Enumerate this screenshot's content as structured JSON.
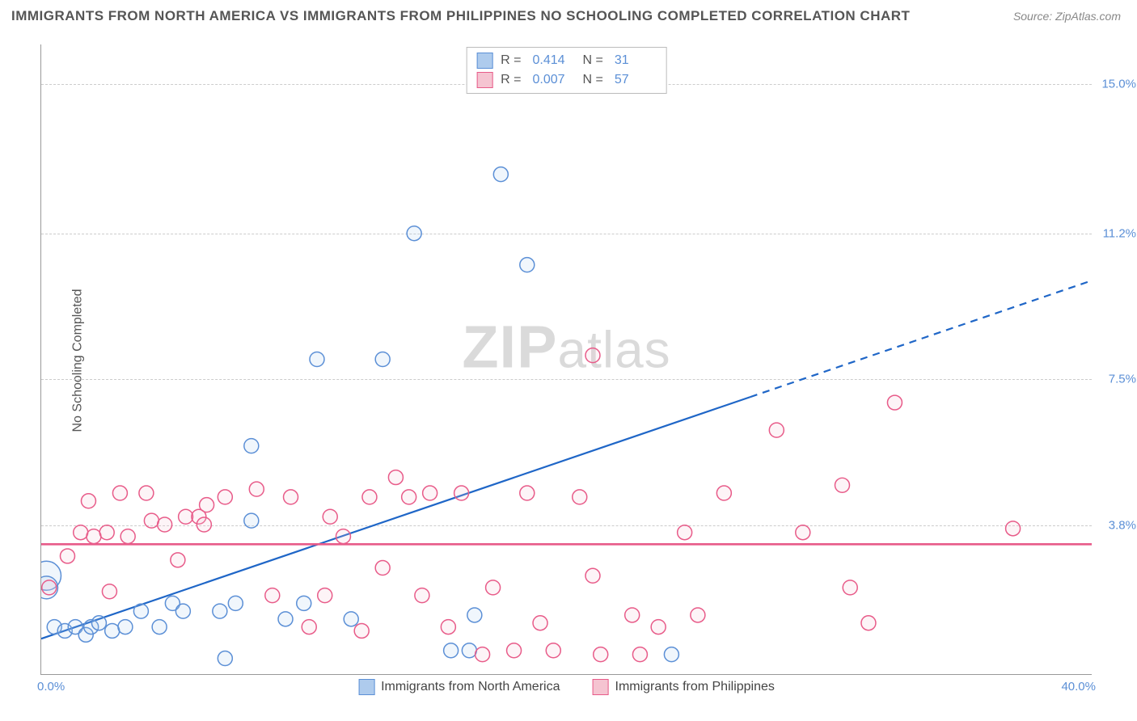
{
  "title": "IMMIGRANTS FROM NORTH AMERICA VS IMMIGRANTS FROM PHILIPPINES NO SCHOOLING COMPLETED CORRELATION CHART",
  "source": "Source: ZipAtlas.com",
  "ylabel": "No Schooling Completed",
  "watermark_bold": "ZIP",
  "watermark_light": "atlas",
  "chart": {
    "type": "scatter-correlation",
    "background_color": "#ffffff",
    "grid_color": "#cccccc",
    "axis_color": "#999999",
    "tick_color": "#5b8fd6",
    "xlim": [
      0.0,
      40.0
    ],
    "ylim": [
      0.0,
      16.0
    ],
    "x_tick_labels": {
      "min": "0.0%",
      "max": "40.0%"
    },
    "y_ticks": [
      {
        "value": 3.8,
        "label": "3.8%"
      },
      {
        "value": 7.5,
        "label": "7.5%"
      },
      {
        "value": 11.2,
        "label": "11.2%"
      },
      {
        "value": 15.0,
        "label": "15.0%"
      }
    ],
    "stats_box": {
      "rows": [
        {
          "swatch_fill": "#aecbed",
          "swatch_stroke": "#5b8fd6",
          "r_label": "R =",
          "r_value": "0.414",
          "n_label": "N =",
          "n_value": "31"
        },
        {
          "swatch_fill": "#f5c4d1",
          "swatch_stroke": "#e85b89",
          "r_label": "R =",
          "r_value": "0.007",
          "n_label": "N =",
          "n_value": "57"
        }
      ]
    },
    "bottom_legend": [
      {
        "swatch_fill": "#aecbed",
        "swatch_stroke": "#5b8fd6",
        "label": "Immigrants from North America"
      },
      {
        "swatch_fill": "#f5c4d1",
        "swatch_stroke": "#e85b89",
        "label": "Immigrants from Philippines"
      }
    ],
    "series": [
      {
        "name": "north_america",
        "marker": "circle",
        "marker_radius": 9,
        "fill": "#aecbed",
        "stroke": "#5b8fd6",
        "trend": {
          "solid_to_x": 27.0,
          "colour": "#1f66c7",
          "width": 2.2,
          "y_at_0": 0.9,
          "y_at_40": 10.0
        },
        "points": [
          {
            "x": 0.2,
            "y": 2.5,
            "r": 18
          },
          {
            "x": 0.2,
            "y": 2.2,
            "r": 14
          },
          {
            "x": 0.5,
            "y": 1.2
          },
          {
            "x": 0.9,
            "y": 1.1
          },
          {
            "x": 1.3,
            "y": 1.2
          },
          {
            "x": 1.7,
            "y": 1.0
          },
          {
            "x": 1.9,
            "y": 1.2
          },
          {
            "x": 2.2,
            "y": 1.3
          },
          {
            "x": 2.7,
            "y": 1.1
          },
          {
            "x": 3.2,
            "y": 1.2
          },
          {
            "x": 3.8,
            "y": 1.6
          },
          {
            "x": 4.5,
            "y": 1.2
          },
          {
            "x": 5.0,
            "y": 1.8
          },
          {
            "x": 5.4,
            "y": 1.6
          },
          {
            "x": 6.8,
            "y": 1.6
          },
          {
            "x": 7.0,
            "y": 0.4
          },
          {
            "x": 7.4,
            "y": 1.8
          },
          {
            "x": 8.0,
            "y": 3.9
          },
          {
            "x": 8.0,
            "y": 5.8
          },
          {
            "x": 9.3,
            "y": 1.4
          },
          {
            "x": 10.0,
            "y": 1.8
          },
          {
            "x": 10.5,
            "y": 8.0
          },
          {
            "x": 11.8,
            "y": 1.4
          },
          {
            "x": 13.0,
            "y": 8.0
          },
          {
            "x": 14.2,
            "y": 11.2
          },
          {
            "x": 15.6,
            "y": 0.6
          },
          {
            "x": 16.3,
            "y": 0.6
          },
          {
            "x": 16.5,
            "y": 1.5
          },
          {
            "x": 17.5,
            "y": 12.7
          },
          {
            "x": 18.5,
            "y": 10.4
          },
          {
            "x": 24.0,
            "y": 0.5
          }
        ]
      },
      {
        "name": "philippines",
        "marker": "circle",
        "marker_radius": 9,
        "fill": "#f5c4d1",
        "stroke": "#e85b89",
        "trend": {
          "solid_to_x": 40.0,
          "colour": "#e85b89",
          "width": 2.6,
          "y_at_0": 3.3,
          "y_at_40": 3.3
        },
        "points": [
          {
            "x": 0.3,
            "y": 2.2
          },
          {
            "x": 1.0,
            "y": 3.0
          },
          {
            "x": 1.5,
            "y": 3.6
          },
          {
            "x": 1.8,
            "y": 4.4
          },
          {
            "x": 2.0,
            "y": 3.5
          },
          {
            "x": 2.5,
            "y": 3.6
          },
          {
            "x": 2.6,
            "y": 2.1
          },
          {
            "x": 3.0,
            "y": 4.6
          },
          {
            "x": 3.3,
            "y": 3.5
          },
          {
            "x": 4.0,
            "y": 4.6
          },
          {
            "x": 4.2,
            "y": 3.9
          },
          {
            "x": 4.7,
            "y": 3.8
          },
          {
            "x": 5.2,
            "y": 2.9
          },
          {
            "x": 5.5,
            "y": 4.0
          },
          {
            "x": 6.0,
            "y": 4.0
          },
          {
            "x": 6.2,
            "y": 3.8
          },
          {
            "x": 6.3,
            "y": 4.3
          },
          {
            "x": 7.0,
            "y": 4.5
          },
          {
            "x": 8.2,
            "y": 4.7
          },
          {
            "x": 8.8,
            "y": 2.0
          },
          {
            "x": 9.5,
            "y": 4.5
          },
          {
            "x": 10.2,
            "y": 1.2
          },
          {
            "x": 10.8,
            "y": 2.0
          },
          {
            "x": 11.0,
            "y": 4.0
          },
          {
            "x": 11.5,
            "y": 3.5
          },
          {
            "x": 12.2,
            "y": 1.1
          },
          {
            "x": 12.5,
            "y": 4.5
          },
          {
            "x": 13.0,
            "y": 2.7
          },
          {
            "x": 13.5,
            "y": 5.0
          },
          {
            "x": 14.0,
            "y": 4.5
          },
          {
            "x": 14.5,
            "y": 2.0
          },
          {
            "x": 14.8,
            "y": 4.6
          },
          {
            "x": 15.5,
            "y": 1.2
          },
          {
            "x": 16.0,
            "y": 4.6
          },
          {
            "x": 16.8,
            "y": 0.5
          },
          {
            "x": 17.2,
            "y": 2.2
          },
          {
            "x": 18.0,
            "y": 0.6
          },
          {
            "x": 18.5,
            "y": 4.6
          },
          {
            "x": 19.0,
            "y": 1.3
          },
          {
            "x": 19.5,
            "y": 0.6
          },
          {
            "x": 20.5,
            "y": 4.5
          },
          {
            "x": 21.0,
            "y": 2.5
          },
          {
            "x": 21.0,
            "y": 8.1
          },
          {
            "x": 21.3,
            "y": 0.5
          },
          {
            "x": 22.5,
            "y": 1.5
          },
          {
            "x": 22.8,
            "y": 0.5
          },
          {
            "x": 23.5,
            "y": 1.2
          },
          {
            "x": 24.5,
            "y": 3.6
          },
          {
            "x": 25.0,
            "y": 1.5
          },
          {
            "x": 26.0,
            "y": 4.6
          },
          {
            "x": 28.0,
            "y": 6.2
          },
          {
            "x": 29.0,
            "y": 3.6
          },
          {
            "x": 30.5,
            "y": 4.8
          },
          {
            "x": 30.8,
            "y": 2.2
          },
          {
            "x": 31.5,
            "y": 1.3
          },
          {
            "x": 32.5,
            "y": 6.9
          },
          {
            "x": 37.0,
            "y": 3.7
          }
        ]
      }
    ]
  }
}
